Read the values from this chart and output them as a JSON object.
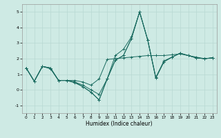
{
  "xlabel": "Humidex (Indice chaleur)",
  "background_color": "#ceeae4",
  "grid_color": "#b8d8d2",
  "line_color": "#1a6b60",
  "xlim": [
    -0.5,
    23.5
  ],
  "ylim": [
    -1.5,
    5.5
  ],
  "yticks": [
    -1,
    0,
    1,
    2,
    3,
    4,
    5
  ],
  "xticks": [
    0,
    1,
    2,
    3,
    4,
    5,
    6,
    7,
    8,
    9,
    10,
    11,
    12,
    13,
    14,
    15,
    16,
    17,
    18,
    19,
    20,
    21,
    22,
    23
  ],
  "series": [
    [
      1.4,
      0.55,
      1.5,
      1.4,
      0.6,
      0.6,
      0.6,
      0.5,
      0.3,
      0.7,
      1.95,
      2.0,
      2.05,
      2.1,
      2.15,
      2.2,
      2.2,
      2.2,
      2.25,
      2.3,
      2.2,
      2.1,
      2.0,
      2.05
    ],
    [
      1.4,
      0.55,
      1.5,
      1.4,
      0.6,
      0.6,
      0.5,
      0.3,
      0.0,
      -0.3,
      0.7,
      2.2,
      2.6,
      3.4,
      5.0,
      3.2,
      0.8,
      1.85,
      2.1,
      2.35,
      2.2,
      2.05,
      2.0,
      2.05
    ],
    [
      1.4,
      0.55,
      1.5,
      1.4,
      0.6,
      0.6,
      0.5,
      0.2,
      -0.15,
      -0.65,
      0.7,
      1.9,
      2.2,
      3.3,
      5.0,
      3.2,
      0.75,
      1.8,
      2.1,
      2.35,
      2.2,
      2.05,
      2.0,
      2.05
    ],
    [
      1.4,
      0.55,
      1.5,
      1.35,
      0.6,
      0.6,
      0.45,
      0.2,
      -0.15,
      -0.65,
      0.7,
      1.9,
      2.2,
      3.3,
      5.0,
      3.2,
      0.75,
      1.8,
      2.1,
      2.35,
      2.2,
      2.05,
      2.0,
      2.05
    ]
  ]
}
